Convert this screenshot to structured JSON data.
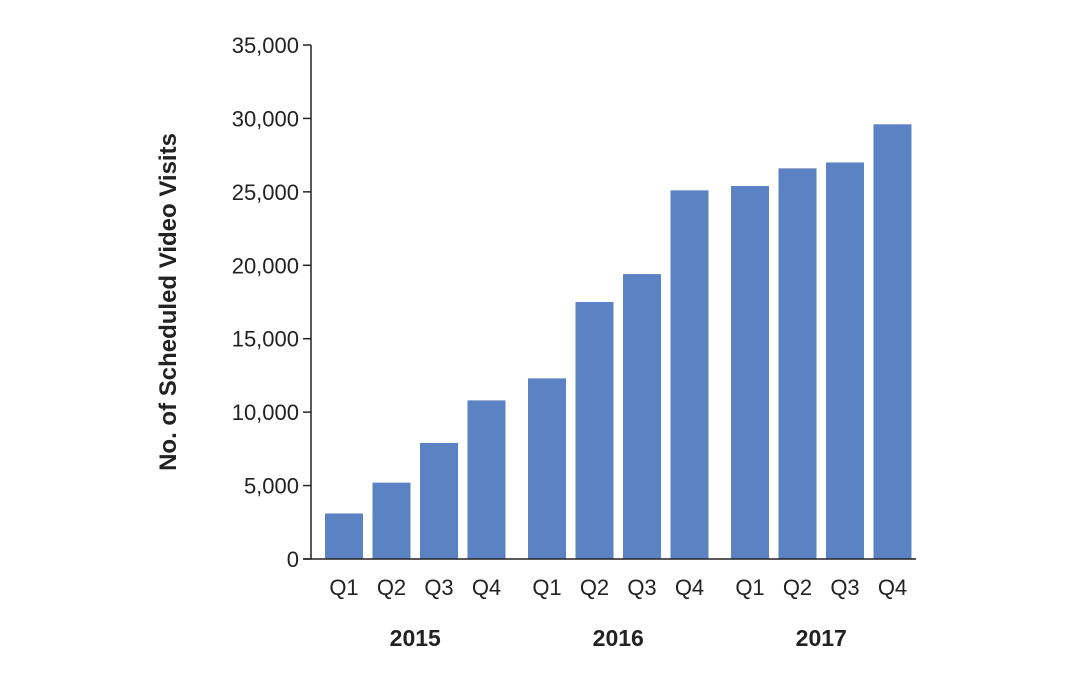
{
  "chart_data": {
    "type": "bar",
    "ylabel": "No. of Scheduled Video Visits",
    "ylim": [
      0,
      35000
    ],
    "yticks": [
      0,
      5000,
      10000,
      15000,
      20000,
      25000,
      30000,
      35000
    ],
    "ytick_labels": [
      "0",
      "5,000",
      "10,000",
      "15,000",
      "20,000",
      "25,000",
      "30,000",
      "35,000"
    ],
    "grid": false,
    "colors": {
      "bar": "#5b83c3",
      "axis": "#222222"
    },
    "groups": [
      {
        "label": "2015",
        "categories": [
          "Q1",
          "Q2",
          "Q3",
          "Q4"
        ],
        "values": [
          3100,
          5200,
          7900,
          10800
        ]
      },
      {
        "label": "2016",
        "categories": [
          "Q1",
          "Q2",
          "Q3",
          "Q4"
        ],
        "values": [
          12300,
          17500,
          19400,
          25100
        ]
      },
      {
        "label": "2017",
        "categories": [
          "Q1",
          "Q2",
          "Q3",
          "Q4"
        ],
        "values": [
          25400,
          26600,
          27000,
          29600
        ]
      }
    ]
  }
}
